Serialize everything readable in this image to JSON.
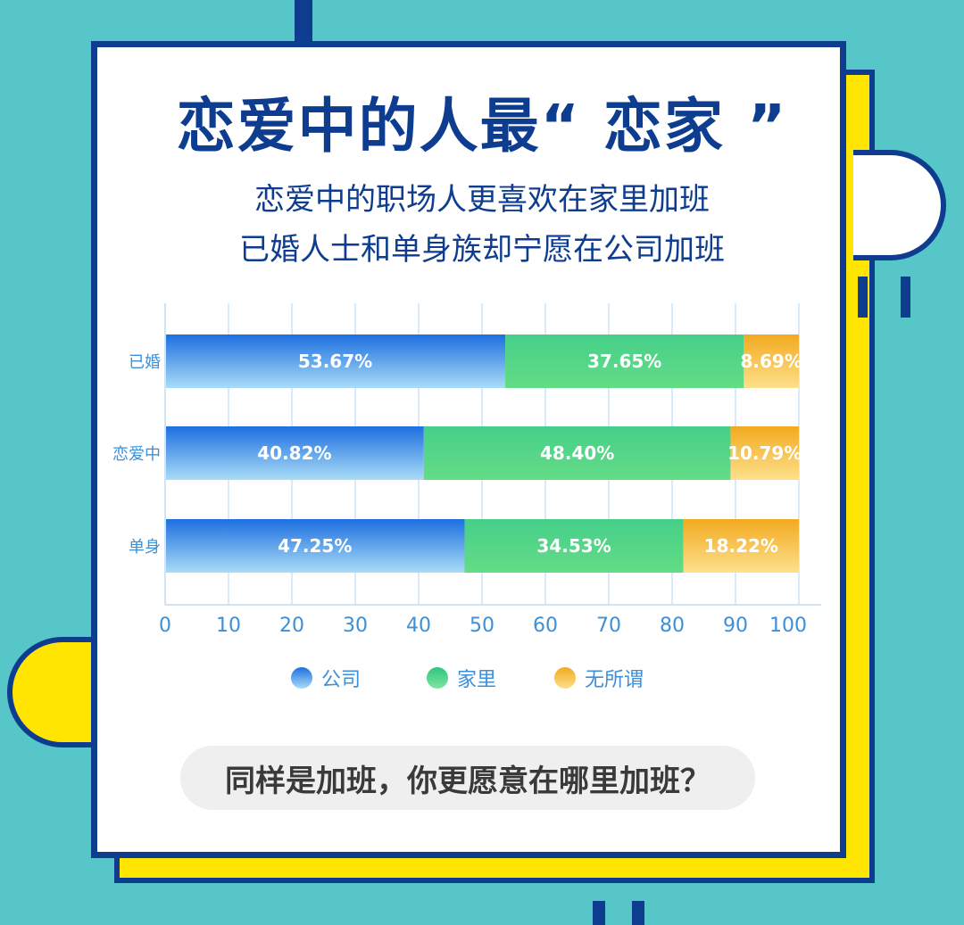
{
  "header": {
    "title": "恋爱中的人最“ 恋家 ”",
    "subtitle_line1": "恋爱中的职场人更喜欢在家里加班",
    "subtitle_line2": "已婚人士和单身族却宁愿在公司加班"
  },
  "chart_data": {
    "type": "bar",
    "orientation": "horizontal",
    "stacked": true,
    "title": "",
    "xlabel": "",
    "ylabel": "",
    "categories": [
      "已婚",
      "恋爱中",
      "单身"
    ],
    "series": [
      {
        "name": "公司",
        "values": [
          53.67,
          40.82,
          47.25
        ],
        "labels": [
          "53.67%",
          "40.82%",
          "47.25%"
        ],
        "color_top": "#1d6fe0",
        "color_bottom": "#a9dcf7"
      },
      {
        "name": "家里",
        "values": [
          37.65,
          48.4,
          34.53
        ],
        "labels": [
          "37.65%",
          "48.40%",
          "34.53%"
        ],
        "color_top": "#46cf8a",
        "color_bottom": "#63dc86"
      },
      {
        "name": "无所谓",
        "values": [
          8.69,
          10.79,
          18.22
        ],
        "labels": [
          "8.69%",
          "10.79%",
          "18.22%"
        ],
        "color_top": "#f2aa20",
        "color_bottom": "#fde08c"
      }
    ],
    "xlim": [
      0,
      100
    ],
    "x_ticks": [
      "0",
      "10",
      "20",
      "30",
      "40",
      "50",
      "60",
      "70",
      "80",
      "90",
      "100"
    ],
    "grid": true,
    "legend_position": "bottom",
    "axis_color": "#3d8fd8",
    "grid_color": "#cfe4f5"
  },
  "footer": {
    "question": "同样是加班，你更愿意在哪里加班？"
  }
}
